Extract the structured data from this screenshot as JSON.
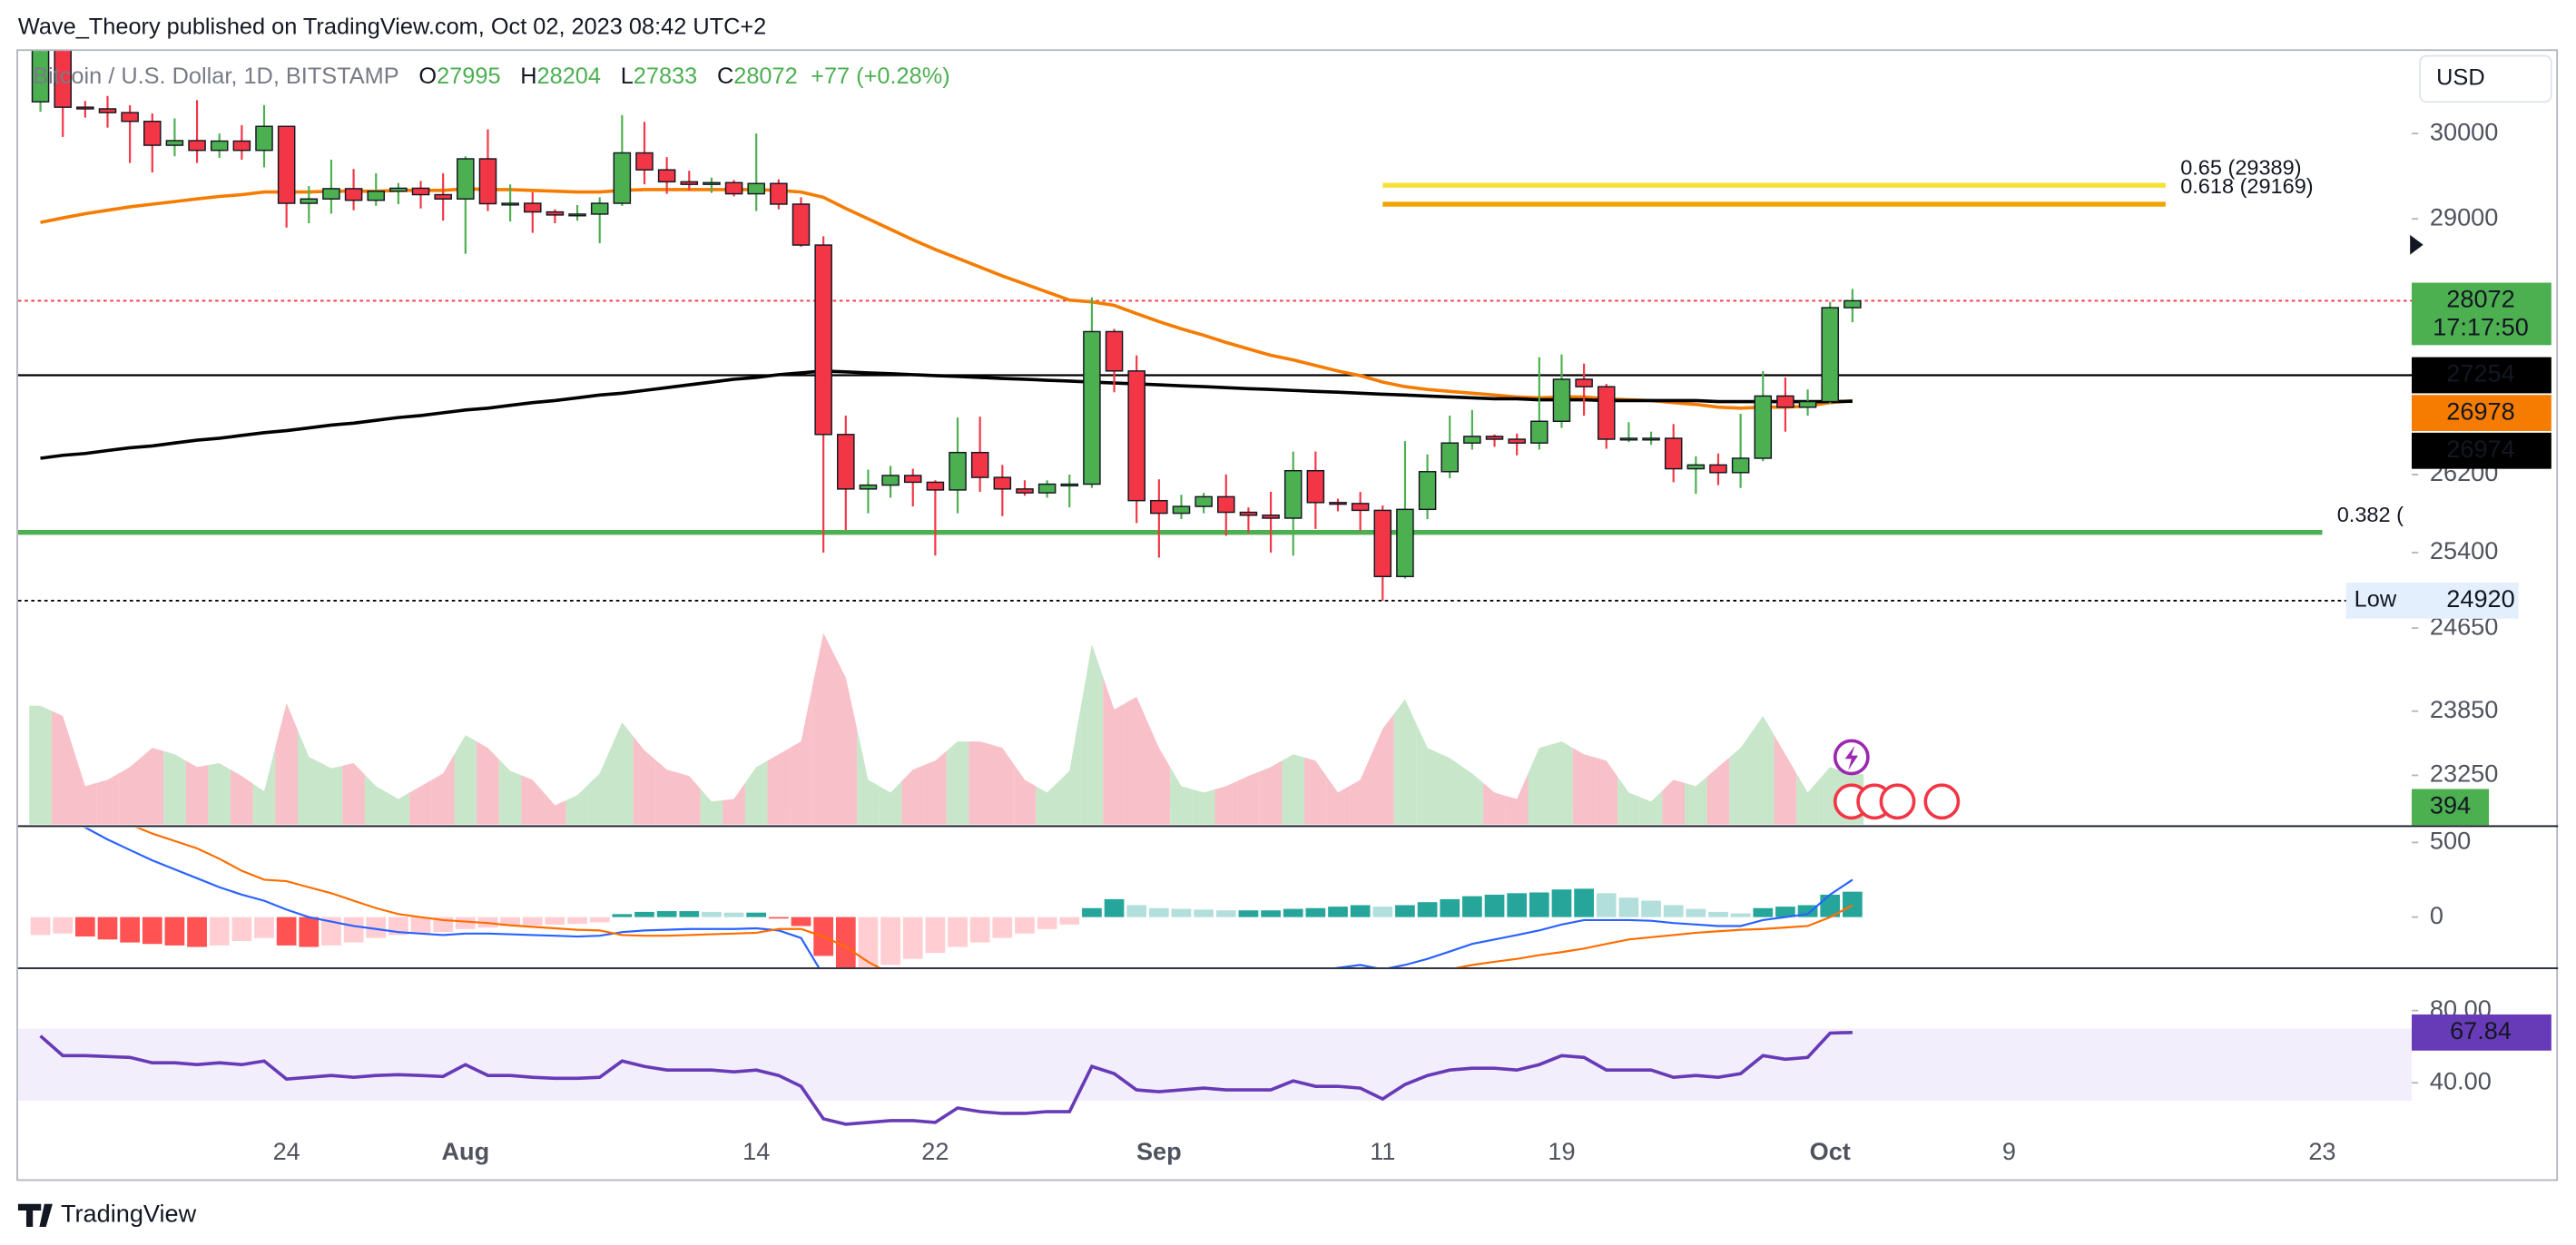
{
  "header": "Wave_Theory published on TradingView.com, Oct 02, 2023 08:42 UTC+2",
  "footer": "TradingView",
  "chart_data": {
    "type": "candlestick",
    "title": "Bitcoin / U.S. Dollar, 1D, BITSTAMP",
    "ohlc_legend": [
      {
        "prefix": "O",
        "value": 27995
      },
      {
        "prefix": "H",
        "value": 28204
      },
      {
        "prefix": "L",
        "value": 27833
      },
      {
        "prefix": "C",
        "value": 28072
      }
    ],
    "change": {
      "value": 77,
      "label": "+77 (+0.28%)"
    },
    "currency": "USD",
    "xlim": [
      -1,
      106
    ],
    "xticks": [
      {
        "value": 11,
        "label": "24"
      },
      {
        "value": 19,
        "label": "Aug"
      },
      {
        "value": 32,
        "label": "14"
      },
      {
        "value": 40,
        "label": "22"
      },
      {
        "value": 50,
        "label": "Sep"
      },
      {
        "value": 60,
        "label": "11"
      },
      {
        "value": 68,
        "label": "19"
      },
      {
        "value": 80,
        "label": "Oct"
      },
      {
        "value": 88,
        "label": "9"
      },
      {
        "value": 102,
        "label": "23"
      }
    ],
    "ylim": [
      22800,
      31000
    ],
    "log": true,
    "yticks": [
      30000,
      29000,
      26200,
      25400,
      24650,
      23850,
      23250
    ],
    "up_color": "#4caf50",
    "down_color": "#f23645",
    "open": [
      30380,
      31474,
      30315,
      30295,
      30250,
      30145,
      29860,
      29915,
      29800,
      29910,
      29800,
      30085,
      29180,
      29230,
      29350,
      29215,
      29320,
      29355,
      29280,
      29230,
      29700,
      29175,
      29180,
      29080,
      29045,
      29055,
      29180,
      29770,
      29570,
      29430,
      29400,
      29420,
      29290,
      29410,
      29170,
      28700,
      26620,
      26050,
      26090,
      26190,
      26120,
      26040,
      26430,
      26170,
      26050,
      26010,
      26100,
      26100,
      27730,
      27300,
      25930,
      25800,
      25870,
      25970,
      25810,
      25780,
      25750,
      26240,
      25910,
      25900,
      25830,
      25160,
      25840,
      26230,
      26530,
      26600,
      26570,
      26530,
      26760,
      27210,
      27130,
      26570,
      26580,
      26580,
      26260,
      26300,
      26220,
      26370,
      27030,
      26910,
      26970,
      27995
    ],
    "high": [
      31814,
      31630,
      30390,
      30450,
      30340,
      30240,
      30180,
      30400,
      30000,
      30100,
      30340,
      30090,
      29380,
      29690,
      29580,
      29530,
      29415,
      29440,
      29530,
      29730,
      30050,
      29400,
      29310,
      29110,
      29160,
      29250,
      30220,
      30140,
      29720,
      29560,
      29480,
      29450,
      30000,
      29460,
      29250,
      28800,
      26820,
      26250,
      26290,
      26260,
      26140,
      26800,
      26810,
      26300,
      26140,
      26140,
      26200,
      28110,
      27760,
      27470,
      26150,
      25990,
      26010,
      26200,
      25860,
      26020,
      26440,
      26440,
      25950,
      26020,
      25880,
      26550,
      26410,
      26820,
      26880,
      26620,
      26630,
      27450,
      27480,
      27380,
      27160,
      26750,
      26650,
      26730,
      26390,
      26420,
      26840,
      27300,
      27230,
      27100,
      28060,
      28204
    ],
    "low": [
      30260,
      29960,
      30190,
      30070,
      29650,
      29540,
      29730,
      29650,
      29710,
      29690,
      29600,
      28900,
      28950,
      29060,
      29100,
      29150,
      29170,
      29120,
      28980,
      28600,
      29090,
      28970,
      28840,
      28950,
      28980,
      28720,
      29150,
      29400,
      29290,
      29330,
      29300,
      29260,
      29090,
      29110,
      28680,
      25400,
      25630,
      25800,
      25960,
      25870,
      25370,
      25800,
      26020,
      25770,
      25980,
      25960,
      25860,
      26060,
      27070,
      25700,
      25350,
      25740,
      25800,
      25570,
      25600,
      25400,
      25370,
      25640,
      25820,
      25620,
      24920,
      25140,
      25740,
      26160,
      26460,
      26490,
      26400,
      26460,
      26690,
      26820,
      26470,
      26540,
      26510,
      26120,
      26000,
      26090,
      26060,
      26340,
      26650,
      26820,
      26950,
      27833
    ],
    "close": [
      31474,
      30315,
      30295,
      30250,
      30145,
      29860,
      29915,
      29800,
      29910,
      29800,
      30085,
      29180,
      29230,
      29350,
      29215,
      29320,
      29355,
      29280,
      29230,
      29700,
      29175,
      29180,
      29080,
      29045,
      29055,
      29180,
      29770,
      29570,
      29430,
      29400,
      29420,
      29290,
      29410,
      29170,
      28700,
      26620,
      26050,
      26090,
      26190,
      26120,
      26040,
      26430,
      26170,
      26050,
      26010,
      26100,
      26100,
      27730,
      27300,
      25930,
      25800,
      25870,
      25970,
      25810,
      25780,
      25750,
      26240,
      25910,
      25900,
      25830,
      25160,
      25840,
      26230,
      26530,
      26600,
      26570,
      26530,
      26760,
      27210,
      27130,
      26570,
      26580,
      26580,
      26260,
      26300,
      26220,
      26370,
      27030,
      26910,
      26970,
      27995,
      28072
    ],
    "moving_averages": [
      {
        "color": "#f57c00",
        "values": [
          28960,
          29010,
          29060,
          29100,
          29140,
          29170,
          29200,
          29230,
          29260,
          29280,
          29310,
          29310,
          29310,
          29320,
          29320,
          29320,
          29330,
          29330,
          29330,
          29350,
          29340,
          29340,
          29330,
          29320,
          29310,
          29310,
          29330,
          29340,
          29340,
          29340,
          29340,
          29340,
          29340,
          29330,
          29310,
          29250,
          29120,
          29000,
          28880,
          28760,
          28650,
          28550,
          28450,
          28350,
          28260,
          28170,
          28080,
          28060,
          28020,
          27930,
          27840,
          27760,
          27690,
          27610,
          27540,
          27470,
          27420,
          27360,
          27300,
          27250,
          27180,
          27130,
          27100,
          27080,
          27060,
          27040,
          27020,
          27010,
          27020,
          27020,
          27000,
          26990,
          26980,
          26960,
          26940,
          26910,
          26900,
          26910,
          26910,
          26920,
          26960,
          26978
        ]
      },
      {
        "color": "#000000",
        "values": [
          26370,
          26400,
          26420,
          26450,
          26480,
          26500,
          26530,
          26560,
          26580,
          26610,
          26640,
          26660,
          26690,
          26720,
          26740,
          26770,
          26800,
          26820,
          26850,
          26880,
          26900,
          26930,
          26960,
          26980,
          27010,
          27040,
          27060,
          27090,
          27120,
          27150,
          27180,
          27210,
          27230,
          27260,
          27280,
          27300,
          27290,
          27280,
          27270,
          27260,
          27250,
          27240,
          27230,
          27220,
          27210,
          27200,
          27190,
          27180,
          27170,
          27160,
          27150,
          27140,
          27130,
          27120,
          27110,
          27100,
          27090,
          27080,
          27070,
          27060,
          27050,
          27040,
          27030,
          27020,
          27010,
          27000,
          27000,
          26990,
          26990,
          26990,
          26980,
          26980,
          26980,
          26980,
          26980,
          26970,
          26970,
          26970,
          26970,
          26970,
          26970,
          26974
        ]
      }
    ],
    "price_labels": [
      {
        "value": 28072,
        "countdown": "17:17:50",
        "color": "#4caf50",
        "line": "dotted",
        "line_color": "#f23645"
      },
      {
        "value": 27254,
        "color": "#000000",
        "line": "solid",
        "line_color": "#000000"
      },
      {
        "value": 26978,
        "color": "#f57c00"
      },
      {
        "value": 26974,
        "color": "#000000"
      },
      {
        "label": "Low",
        "value": 24920,
        "color": "#e3effd",
        "line": "dotted",
        "line_color": "#000000"
      }
    ],
    "fib_levels": [
      {
        "label": "0.65 (29389)",
        "value": 29389,
        "color": "#f7e03a",
        "from": 60,
        "to": 95
      },
      {
        "label": "0.618 (29169)",
        "value": 29169,
        "color": "#f0a500",
        "from": 60,
        "to": 95
      },
      {
        "label": "0.382 (",
        "value": 25605,
        "color": "#4caf50",
        "from": -1,
        "to": 102
      }
    ],
    "volume": {
      "lim": [
        0,
        1800
      ],
      "up_color": "#c8e6c9",
      "down_color": "#f8c0c8",
      "label_color": "#4caf50",
      "values": [
        930,
        850,
        300,
        350,
        450,
        600,
        550,
        450,
        480,
        380,
        260,
        950,
        530,
        440,
        480,
        300,
        200,
        300,
        400,
        700,
        600,
        420,
        350,
        150,
        230,
        400,
        800,
        580,
        430,
        380,
        180,
        200,
        450,
        550,
        650,
        1500,
        1150,
        350,
        250,
        430,
        500,
        650,
        650,
        600,
        350,
        250,
        420,
        1410,
        900,
        1000,
        600,
        300,
        250,
        300,
        380,
        450,
        550,
        500,
        250,
        350,
        750,
        980,
        600,
        520,
        400,
        250,
        200,
        600,
        650,
        550,
        500,
        250,
        180,
        350,
        300,
        450,
        600,
        850,
        550,
        250,
        450,
        394
      ]
    },
    "macd": {
      "ylim": [
        -337,
        598
      ],
      "yticks": [
        500,
        0
      ],
      "colors": {
        "grow_pos": "#26a69a",
        "fall_pos": "#b2dfdb",
        "grow_neg": "#ffcdd2",
        "fall_neg": "#ff5252",
        "macd": "#2962ff",
        "signal": "#ff6d00"
      },
      "histogram": [
        -120,
        -110,
        -130,
        -150,
        -170,
        -180,
        -190,
        -200,
        -190,
        -160,
        -140,
        -190,
        -200,
        -190,
        -170,
        -140,
        -120,
        -110,
        -100,
        -80,
        -70,
        -60,
        -55,
        -50,
        -45,
        -35,
        20,
        35,
        40,
        40,
        35,
        30,
        30,
        -10,
        -60,
        -260,
        -340,
        -340,
        -320,
        -280,
        -240,
        -200,
        -170,
        -140,
        -110,
        -80,
        -50,
        60,
        120,
        80,
        60,
        55,
        50,
        45,
        45,
        45,
        55,
        60,
        70,
        80,
        70,
        80,
        100,
        120,
        140,
        150,
        160,
        165,
        185,
        190,
        160,
        130,
        110,
        80,
        55,
        35,
        25,
        60,
        70,
        80,
        150,
        170
      ],
      "macd": [
        750,
        680,
        600,
        520,
        450,
        380,
        320,
        260,
        200,
        150,
        110,
        50,
        0,
        -30,
        -60,
        -80,
        -100,
        -110,
        -120,
        -110,
        -110,
        -115,
        -120,
        -125,
        -130,
        -125,
        -100,
        -90,
        -85,
        -80,
        -80,
        -80,
        -75,
        -90,
        -140,
        -390,
        -540,
        -640,
        -700,
        -730,
        -750,
        -730,
        -720,
        -710,
        -700,
        -680,
        -660,
        -520,
        -440,
        -450,
        -460,
        -450,
        -440,
        -440,
        -430,
        -420,
        -380,
        -360,
        -340,
        -320,
        -350,
        -320,
        -280,
        -230,
        -180,
        -150,
        -120,
        -90,
        -50,
        -20,
        -20,
        -20,
        -25,
        -40,
        -50,
        -60,
        -60,
        -20,
        0,
        20,
        150,
        250
      ],
      "signal": [
        870,
        790,
        730,
        670,
        620,
        560,
        510,
        460,
        390,
        310,
        250,
        240,
        200,
        160,
        110,
        60,
        20,
        0,
        -20,
        -30,
        -40,
        -55,
        -65,
        -75,
        -85,
        -90,
        -120,
        -125,
        -125,
        -120,
        -115,
        -110,
        -105,
        -80,
        -80,
        -130,
        -200,
        -300,
        -380,
        -450,
        -510,
        -530,
        -550,
        -570,
        -590,
        -600,
        -610,
        -580,
        -560,
        -530,
        -520,
        -505,
        -490,
        -485,
        -475,
        -465,
        -435,
        -420,
        -410,
        -400,
        -420,
        -400,
        -380,
        -350,
        -320,
        -300,
        -280,
        -255,
        -235,
        -210,
        -180,
        -150,
        -135,
        -120,
        -105,
        -95,
        -85,
        -80,
        -70,
        -60,
        0,
        80
      ]
    },
    "rsi": {
      "ylim": [
        12,
        103
      ],
      "yticks": [
        {
          "value": 80,
          "label": "80.00"
        },
        {
          "value": 40,
          "label": "40.00"
        }
      ],
      "band": [
        30,
        70
      ],
      "color": "#673ab7",
      "band_color": "#f3eefb",
      "values": [
        66,
        55,
        55,
        54.5,
        54,
        51,
        51,
        50,
        51,
        50,
        52,
        42,
        43,
        44,
        43,
        44,
        44.5,
        44,
        43.5,
        50,
        44,
        44,
        43,
        42.5,
        42.5,
        43,
        52,
        49,
        47,
        47,
        47,
        46,
        47,
        44,
        38,
        20,
        17,
        18,
        19,
        19,
        18,
        26,
        24,
        23,
        23,
        24,
        24,
        49,
        45,
        36,
        35,
        36,
        37,
        36,
        36,
        36,
        41,
        38,
        38,
        37,
        31,
        39,
        44,
        47,
        48,
        48,
        47,
        50,
        55,
        54,
        47,
        47,
        47,
        43,
        44,
        43,
        45,
        55,
        53,
        54,
        67.5,
        67.84
      ]
    }
  }
}
